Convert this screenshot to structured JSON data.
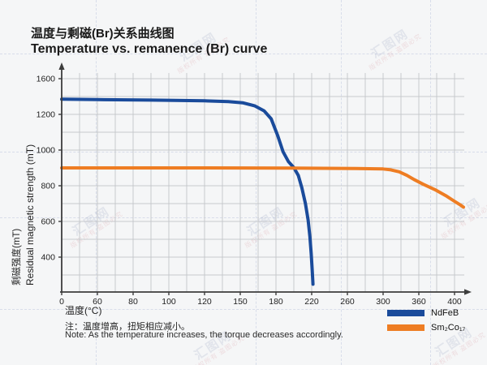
{
  "header": {
    "title_zh": "温度与剩磁(Br)关系曲线图",
    "title_en": "Temperature vs. remanence (Br) curve"
  },
  "watermark": {
    "brand": "汇图网",
    "notice": "版权所有 盗图必究"
  },
  "chart_data": {
    "type": "line",
    "title": "Temperature vs. remanence (Br) curve",
    "xlabel": "温度(°C)",
    "ylabel_zh": "剩磁强度(mT)",
    "ylabel_en": "Residual magnetic strength (mT)",
    "x_ticks": [
      0,
      60,
      80,
      100,
      120,
      150,
      180,
      220,
      260,
      300,
      360,
      400
    ],
    "y_ticks": [
      1600,
      1200,
      1000,
      800,
      600,
      400
    ],
    "layout": {
      "grid": true,
      "minor_gridlines_between_ticks": true,
      "ticks_evenly_spaced": true,
      "legend_position": "bottom-right",
      "axis_arrows": true
    },
    "series": [
      {
        "name": "NdFeB",
        "color": "#1a4b9b",
        "points": [
          [
            0,
            1370
          ],
          [
            30,
            1368
          ],
          [
            60,
            1365
          ],
          [
            90,
            1360
          ],
          [
            120,
            1352
          ],
          [
            140,
            1343
          ],
          [
            152,
            1330
          ],
          [
            162,
            1296
          ],
          [
            170,
            1240
          ],
          [
            176,
            1175
          ],
          [
            182,
            1080
          ],
          [
            188,
            990
          ],
          [
            194,
            935
          ],
          [
            200,
            902
          ],
          [
            205,
            858
          ],
          [
            209,
            788
          ],
          [
            213,
            700
          ],
          [
            216,
            608
          ],
          [
            218,
            515
          ],
          [
            219.5,
            420
          ],
          [
            220.5,
            330
          ],
          [
            221.5,
            248
          ]
        ]
      },
      {
        "name": "Sm₂Co₁₇",
        "color": "#ee7d23",
        "points": [
          [
            0,
            900
          ],
          [
            100,
            900
          ],
          [
            200,
            899
          ],
          [
            270,
            897
          ],
          [
            300,
            894
          ],
          [
            313,
            889
          ],
          [
            327,
            878
          ],
          [
            340,
            858
          ],
          [
            352,
            835
          ],
          [
            365,
            808
          ],
          [
            378,
            778
          ],
          [
            390,
            745
          ],
          [
            399,
            716
          ],
          [
            406,
            694
          ],
          [
            410,
            680
          ]
        ]
      }
    ]
  },
  "notes": {
    "zh": "注：温度增高，扭矩相应减小。",
    "en": "Note: As the temperature increases, the torque decreases accordingly."
  }
}
